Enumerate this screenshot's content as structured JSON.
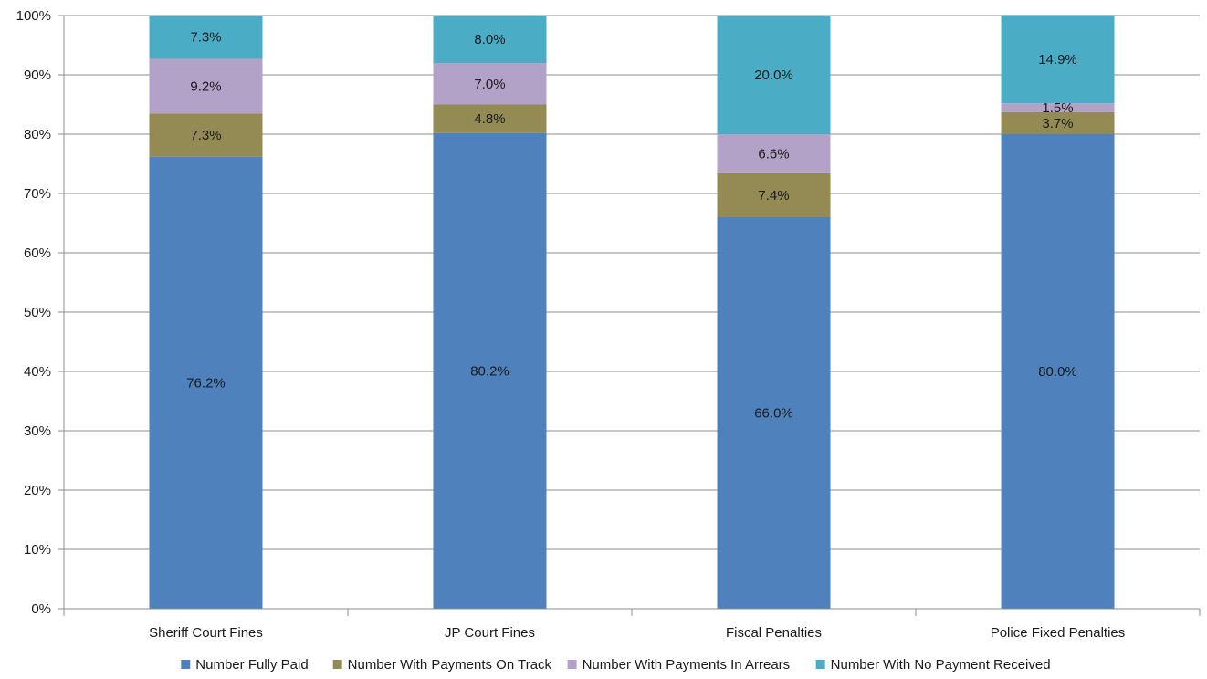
{
  "chart_data": {
    "type": "bar",
    "stacked": true,
    "title": "",
    "xlabel": "",
    "ylabel": "",
    "ylim": [
      0,
      100
    ],
    "y_ticks": [
      "0%",
      "10%",
      "20%",
      "30%",
      "40%",
      "50%",
      "60%",
      "70%",
      "80%",
      "90%",
      "100%"
    ],
    "grid": "horizontal",
    "legend_position": "bottom",
    "categories": [
      "Sheriff Court Fines",
      "JP Court Fines",
      "Fiscal Penalties",
      "Police Fixed Penalties"
    ],
    "series": [
      {
        "name": "Number Fully Paid",
        "color": "#4F81BD",
        "values": [
          76.2,
          80.2,
          66.0,
          80.0
        ],
        "labels": [
          "76.2%",
          "80.2%",
          "66.0%",
          "80.0%"
        ]
      },
      {
        "name": "Number With Payments On Track",
        "color": "#948A54",
        "values": [
          7.3,
          4.8,
          7.4,
          3.7
        ],
        "labels": [
          "7.3%",
          "4.8%",
          "7.4%",
          "3.7%"
        ]
      },
      {
        "name": "Number With Payments In Arrears",
        "color": "#B3A2C7",
        "values": [
          9.2,
          7.0,
          6.6,
          1.5
        ],
        "labels": [
          "9.2%",
          "7.0%",
          "6.6%",
          "1.5%"
        ]
      },
      {
        "name": "Number With No Payment Received",
        "color": "#4BACC6",
        "values": [
          7.3,
          8.0,
          20.0,
          14.9
        ],
        "labels": [
          "7.3%",
          "8.0%",
          "20.0%",
          "14.9%"
        ]
      }
    ]
  }
}
